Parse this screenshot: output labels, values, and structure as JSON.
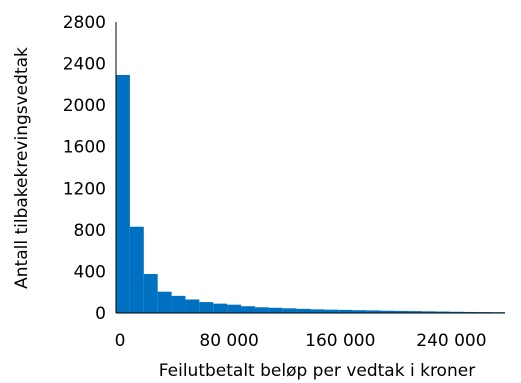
{
  "chart_data": {
    "type": "bar",
    "title": "",
    "xlabel": "Feilutbetalt beløp per vedtak i kroner",
    "ylabel": "Antall tilbakekrevingsvedtak",
    "bin_width": 10000,
    "xlim": [
      0,
      280000
    ],
    "ylim": [
      0,
      2800
    ],
    "x_ticks": [
      0,
      80000,
      160000,
      240000
    ],
    "x_tick_labels": [
      "0",
      "80 000",
      "160 000",
      "240 000"
    ],
    "y_ticks": [
      0,
      400,
      800,
      1200,
      1600,
      2000,
      2400,
      2800
    ],
    "y_tick_labels": [
      "0",
      "400",
      "800",
      "1200",
      "1600",
      "2000",
      "2400",
      "2800"
    ],
    "bar_color": "#0070C0",
    "grid": false,
    "legend": "none",
    "bin_starts": [
      0,
      10000,
      20000,
      30000,
      40000,
      50000,
      60000,
      70000,
      80000,
      90000,
      100000,
      110000,
      120000,
      130000,
      140000,
      150000,
      160000,
      170000,
      180000,
      190000,
      200000,
      210000,
      220000,
      230000,
      240000,
      250000,
      260000,
      270000
    ],
    "values": [
      2290,
      830,
      375,
      205,
      165,
      130,
      105,
      90,
      80,
      65,
      55,
      50,
      45,
      40,
      35,
      32,
      30,
      27,
      25,
      22,
      20,
      18,
      16,
      14,
      12,
      10,
      9,
      8
    ]
  }
}
